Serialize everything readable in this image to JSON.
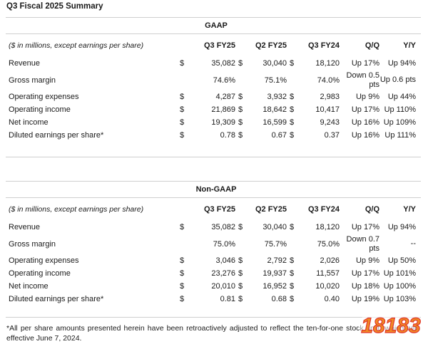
{
  "title": "Q3 Fiscal 2025 Summary",
  "columns": {
    "desc": "($ in millions, except earnings per share)",
    "q3fy25": "Q3 FY25",
    "q2fy25": "Q2 FY25",
    "q3fy24": "Q3 FY24",
    "qq": "Q/Q",
    "yy": "Y/Y"
  },
  "gaap": {
    "heading": "GAAP",
    "rows": [
      {
        "label": "Revenue",
        "dollar": "$",
        "q3fy25": "35,082",
        "q2fy25": "30,040",
        "q3fy24": "18,120",
        "qq": "Up 17%",
        "yy": "Up 94%"
      },
      {
        "label": "Gross margin",
        "dollar": "",
        "q3fy25": "74.6%",
        "q2fy25": "75.1%",
        "q3fy24": "74.0%",
        "qq": "Down 0.5 pts",
        "yy": "Up 0.6 pts"
      },
      {
        "label": "Operating expenses",
        "dollar": "$",
        "q3fy25": "4,287",
        "q2fy25": "3,932",
        "q3fy24": "2,983",
        "qq": "Up 9%",
        "yy": "Up 44%"
      },
      {
        "label": "Operating income",
        "dollar": "$",
        "q3fy25": "21,869",
        "q2fy25": "18,642",
        "q3fy24": "10,417",
        "qq": "Up 17%",
        "yy": "Up 110%"
      },
      {
        "label": "Net income",
        "dollar": "$",
        "q3fy25": "19,309",
        "q2fy25": "16,599",
        "q3fy24": "9,243",
        "qq": "Up 16%",
        "yy": "Up 109%"
      },
      {
        "label": "Diluted earnings per share*",
        "dollar": "$",
        "q3fy25": "0.78",
        "q2fy25": "0.67",
        "q3fy24": "0.37",
        "qq": "Up 16%",
        "yy": "Up 111%"
      }
    ]
  },
  "nongaap": {
    "heading": "Non-GAAP",
    "rows": [
      {
        "label": "Revenue",
        "dollar": "$",
        "q3fy25": "35,082",
        "q2fy25": "30,040",
        "q3fy24": "18,120",
        "qq": "Up 17%",
        "yy": "Up 94%"
      },
      {
        "label": "Gross margin",
        "dollar": "",
        "q3fy25": "75.0%",
        "q2fy25": "75.7%",
        "q3fy24": "75.0%",
        "qq": "Down 0.7 pts",
        "yy": "--"
      },
      {
        "label": "Operating expenses",
        "dollar": "$",
        "q3fy25": "3,046",
        "q2fy25": "2,792",
        "q3fy24": "2,026",
        "qq": "Up 9%",
        "yy": "Up 50%"
      },
      {
        "label": "Operating income",
        "dollar": "$",
        "q3fy25": "23,276",
        "q2fy25": "19,937",
        "q3fy24": "11,557",
        "qq": "Up 17%",
        "yy": "Up 101%"
      },
      {
        "label": "Net income",
        "dollar": "$",
        "q3fy25": "20,010",
        "q2fy25": "16,952",
        "q3fy24": "10,020",
        "qq": "Up 18%",
        "yy": "Up 100%"
      },
      {
        "label": "Diluted earnings per share*",
        "dollar": "$",
        "q3fy25": "0.81",
        "q2fy25": "0.68",
        "q3fy24": "0.40",
        "qq": "Up 19%",
        "yy": "Up 103%"
      }
    ]
  },
  "footnote": "*All per share amounts presented herein have been retroactively adjusted to reflect the ten-for-one stock split, which was effective June 7, 2024.",
  "watermark": {
    "text": "18183",
    "colors": {
      "orange": "#f08a24",
      "red": "#e0352b",
      "ring": "#ffffff"
    }
  }
}
